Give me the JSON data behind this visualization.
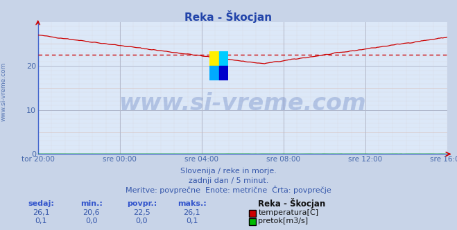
{
  "title": "Reka - Škocjan",
  "title_color": "#2244aa",
  "bg_color": "#c8d4e8",
  "plot_bg_color": "#dce8f8",
  "grid_color_major": "#b0b8cc",
  "grid_color_minor": "#d8c8c8",
  "axis_color": "#4466cc",
  "tick_color": "#4466aa",
  "text_color": "#3355aa",
  "watermark_color": "#3355aa",
  "watermark_alpha": 0.25,
  "watermark_fontsize": 24,
  "watermark_text": "www.si-vreme.com",
  "side_label": "www.si-vreme.com",
  "subtitle1": "Slovenija / reke in morje.",
  "subtitle2": "zadnji dan / 5 minut.",
  "subtitle3": "Meritve: povprečne  Enote: metrične  Črta: povprečje",
  "ylim": [
    0,
    30
  ],
  "yticks": [
    0,
    10,
    20
  ],
  "xticklabels": [
    "tor 20:00",
    "sre 00:00",
    "sre 04:00",
    "sre 08:00",
    "sre 12:00",
    "sre 16:00"
  ],
  "avg_line": 22.5,
  "avg_line_color": "#cc0000",
  "temp_line_color": "#cc0000",
  "flow_line_color": "#00bb00",
  "legend_station": "Reka - Škocjan",
  "legend_temp": "temperatura[C]",
  "legend_flow": "pretok[m3/s]",
  "stats_headers": [
    "sedaj:",
    "min.:",
    "povpr.:",
    "maks.:"
  ],
  "stats_temp": [
    "26,1",
    "20,6",
    "22,5",
    "26,1"
  ],
  "stats_flow": [
    "0,1",
    "0,0",
    "0,0",
    "0,1"
  ],
  "logo_colors": [
    "#ffee00",
    "#00ccff",
    "#00aaff",
    "#0000cc"
  ],
  "n_points": 288
}
